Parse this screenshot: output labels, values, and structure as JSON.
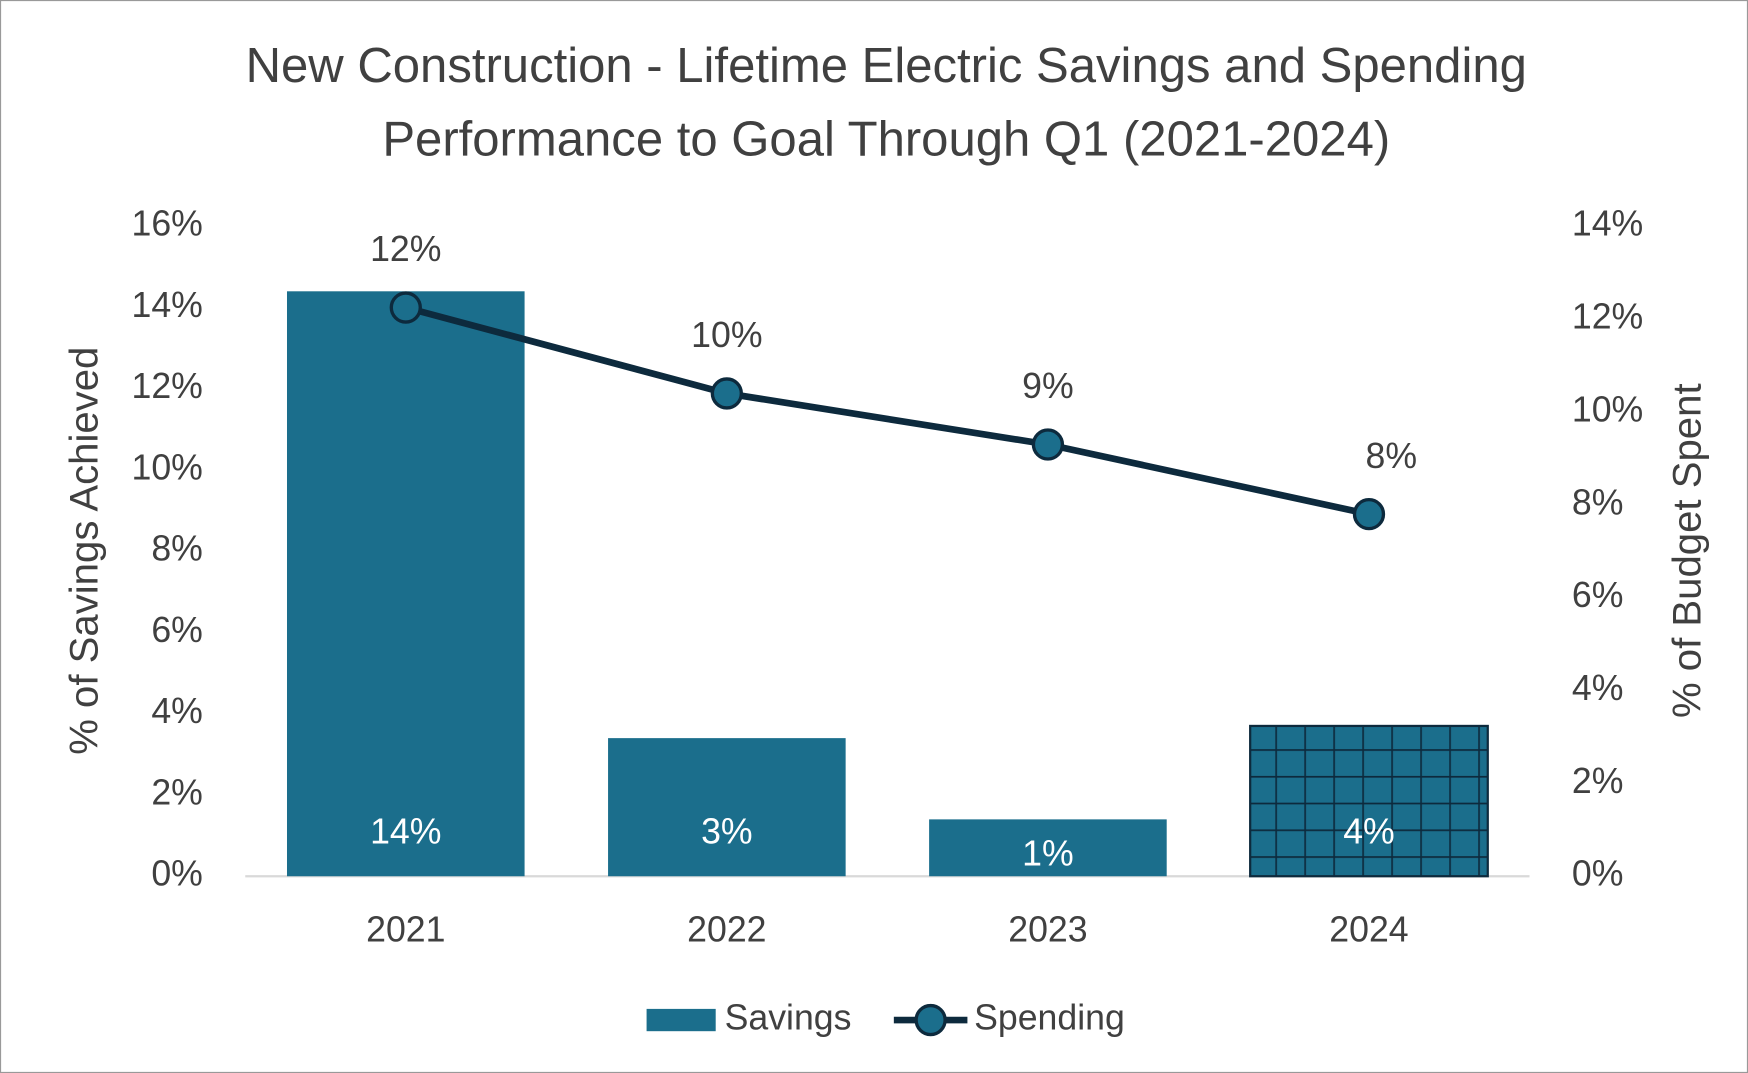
{
  "chart_data": {
    "type": "bar_line",
    "title": [
      "New Construction - Lifetime Electric Savings and Spending",
      "Performance to Goal Through Q1 (2021-2024)"
    ],
    "y_label": "% of Savings Achieved",
    "y2_label": "% of Budget Spent",
    "categories": [
      "2021",
      "2022",
      "2023",
      "2024"
    ],
    "series": [
      {
        "name": "Savings",
        "type": "bar",
        "color": "#1b6e8c",
        "values": [
          14.4,
          3.4,
          1.4,
          3.7
        ],
        "value_labels": [
          "14%",
          "3%",
          "1%",
          "4%"
        ],
        "hatch": [
          false,
          false,
          false,
          true
        ]
      },
      {
        "name": "Spending",
        "type": "line",
        "axis": "y2",
        "color": "#0d2a3d",
        "marker_color": "#1b6e8c",
        "values": [
          12.25,
          10.4,
          9.3,
          7.8
        ],
        "value_labels": [
          "12%",
          "10%",
          "9%",
          "8%"
        ]
      }
    ],
    "ylim": [
      0,
      16
    ],
    "yticks": [
      {
        "value": 0,
        "label": "0%"
      },
      {
        "value": 2,
        "label": "2%"
      },
      {
        "value": 4,
        "label": "4%"
      },
      {
        "value": 6,
        "label": "6%"
      },
      {
        "value": 8,
        "label": "8%"
      },
      {
        "value": 10,
        "label": "10%"
      },
      {
        "value": 12,
        "label": "12%"
      },
      {
        "value": 14,
        "label": "14%"
      },
      {
        "value": 16,
        "label": "16%"
      }
    ],
    "y2lim": [
      0,
      14
    ],
    "y2ticks": [
      {
        "value": 0,
        "label": "0%"
      },
      {
        "value": 2,
        "label": "2%"
      },
      {
        "value": 4,
        "label": "4%"
      },
      {
        "value": 6,
        "label": "6%"
      },
      {
        "value": 8,
        "label": "8%"
      },
      {
        "value": 10,
        "label": "10%"
      },
      {
        "value": 12,
        "label": "12%"
      },
      {
        "value": 14,
        "label": "14%"
      }
    ],
    "legend": "bottom"
  }
}
